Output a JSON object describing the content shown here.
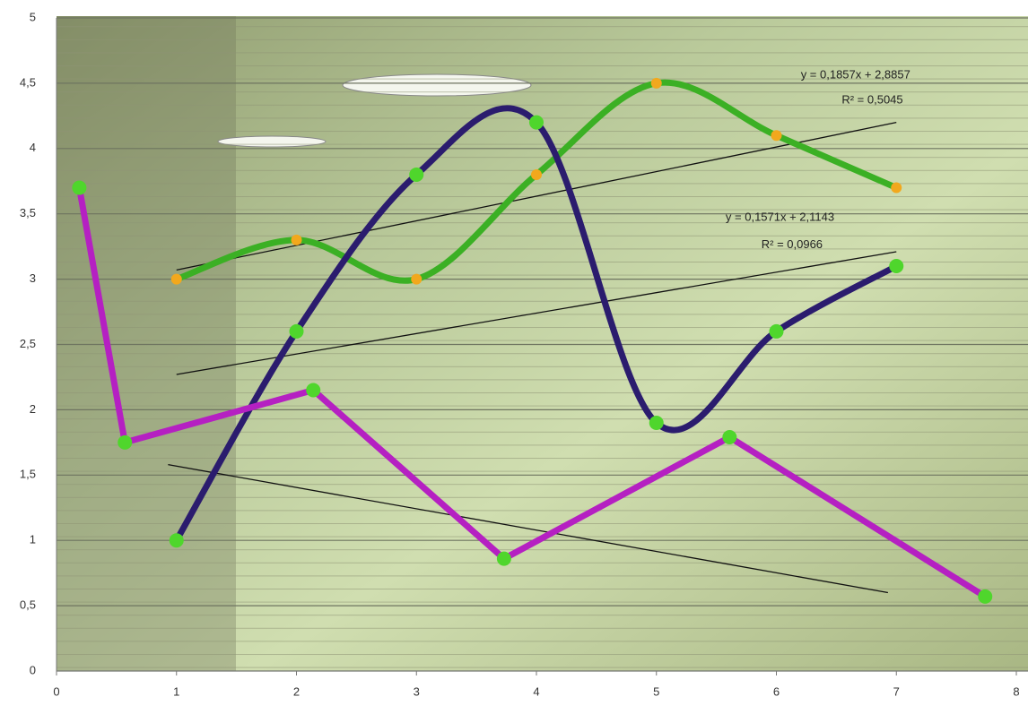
{
  "chart_data": {
    "type": "scatter",
    "xlim": [
      0,
      8
    ],
    "ylim": [
      0,
      5
    ],
    "xticks": [
      0,
      1,
      2,
      3,
      4,
      5,
      6,
      7,
      8
    ],
    "yticks": [
      0,
      {
        "value": 0.5,
        "label": "0,5"
      },
      1,
      {
        "value": 1.5,
        "label": "1,5"
      },
      2,
      {
        "value": 2.5,
        "label": "2,5"
      },
      3,
      {
        "value": 3.5,
        "label": "3,5"
      },
      4,
      {
        "value": 4.5,
        "label": "4,5"
      },
      5
    ],
    "grid": true,
    "series": [
      {
        "color": "#3bb024",
        "marker_color": "#f2a81d",
        "marker_size": 6,
        "smooth": true,
        "x": [
          1,
          2,
          3,
          4,
          5,
          6,
          7
        ],
        "values": [
          3.0,
          3.3,
          3.0,
          3.8,
          4.5,
          4.1,
          3.7
        ]
      },
      {
        "color": "#2b1c6e",
        "marker_color": "#4fd62c",
        "marker_size": 8,
        "smooth": true,
        "x": [
          1,
          2,
          3,
          4,
          5,
          6,
          7
        ],
        "values": [
          1.0,
          2.6,
          3.8,
          4.2,
          1.9,
          2.6,
          3.1
        ]
      },
      {
        "color": "#b520c2",
        "marker_color": "#4fd62c",
        "marker_size": 8,
        "smooth": false,
        "x": [
          0.19,
          0.57,
          2.14,
          3.73,
          5.61,
          7.74
        ],
        "values": [
          3.7,
          1.75,
          2.15,
          0.86,
          1.79,
          0.57
        ]
      }
    ],
    "trendlines": [
      {
        "color": "#111111",
        "x": [
          1,
          7
        ],
        "values": [
          3.07,
          4.2
        ]
      },
      {
        "color": "#111111",
        "x": [
          1,
          7
        ],
        "values": [
          2.27,
          3.21
        ]
      },
      {
        "color": "#111111",
        "x": [
          0.93,
          6.93
        ],
        "values": [
          1.58,
          0.6
        ]
      }
    ],
    "annotations": [
      {
        "text": "y = 0,1857x + 2,8857",
        "x": 6.66,
        "y": 4.56
      },
      {
        "text": "R² = 0,5045",
        "x": 6.8,
        "y": 4.37
      },
      {
        "text": "y = 0,1571x + 2,1143",
        "x": 6.03,
        "y": 3.47
      },
      {
        "text": "R² = 0,0966",
        "x": 6.13,
        "y": 3.26
      }
    ]
  }
}
